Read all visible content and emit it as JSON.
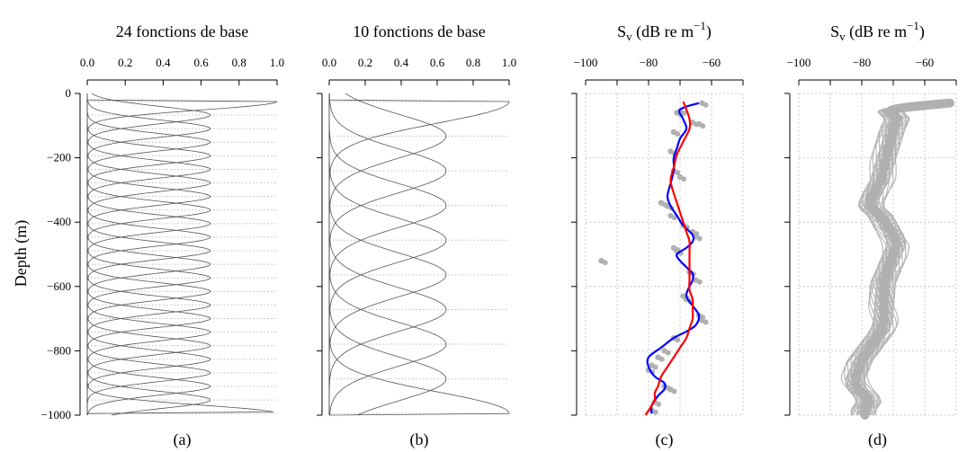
{
  "figure": {
    "ylabel": "Depth (m)",
    "yticks": [
      0,
      -200,
      -400,
      -600,
      -800,
      -1000
    ]
  },
  "colors": {
    "basis_line": "#555555",
    "grid": "#bbbbbb",
    "obs_points": "#b0b0b0",
    "fit_24": "#0000ff",
    "fit_10": "#ff0000",
    "ensemble": "#b0b0b0"
  },
  "chart_data": [
    {
      "id": "a",
      "type": "line",
      "panel_label": "(a)",
      "title": "24 fonctions de base",
      "n_basis": 24,
      "xlim": [
        0,
        1
      ],
      "xticks": [
        "0.0",
        "0.2",
        "0.4",
        "0.6",
        "0.8",
        "1.0"
      ],
      "ylim": [
        -1000,
        0
      ],
      "grid": "dotted horizontal lines at basis peaks"
    },
    {
      "id": "b",
      "type": "line",
      "panel_label": "(b)",
      "title": "10 fonctions de base",
      "n_basis": 10,
      "xlim": [
        0,
        1
      ],
      "xticks": [
        "0.0",
        "0.2",
        "0.4",
        "0.6",
        "0.8",
        "1.0"
      ],
      "ylim": [
        -1000,
        0
      ],
      "grid": "dotted horizontal lines at basis peaks"
    },
    {
      "id": "c",
      "type": "scatter",
      "panel_label": "(c)",
      "title": "S<sub>v</sub> (dB re m<sup>−1</sup>)",
      "title_parts": {
        "main": "S",
        "sub": "v",
        "rest": " (dB re m",
        "sup": "−1",
        "close": ")"
      },
      "xlim": [
        -100,
        -50
      ],
      "xticks": [
        "−100",
        "−80",
        "−60"
      ],
      "ylim": [
        -1000,
        0
      ],
      "grid": "dotted",
      "observations": [
        {
          "x": -63,
          "y": -30
        },
        {
          "x": -70,
          "y": -55
        },
        {
          "x": -71,
          "y": -60
        },
        {
          "x": -66,
          "y": -90
        },
        {
          "x": -64,
          "y": -95
        },
        {
          "x": -72,
          "y": -120
        },
        {
          "x": -73,
          "y": -180
        },
        {
          "x": -72,
          "y": -240
        },
        {
          "x": -70,
          "y": -260
        },
        {
          "x": -76,
          "y": -340
        },
        {
          "x": -74,
          "y": -350
        },
        {
          "x": -73,
          "y": -380
        },
        {
          "x": -69,
          "y": -410
        },
        {
          "x": -66,
          "y": -430
        },
        {
          "x": -65,
          "y": -445
        },
        {
          "x": -72,
          "y": -480
        },
        {
          "x": -71,
          "y": -490
        },
        {
          "x": -95,
          "y": -520
        },
        {
          "x": -67,
          "y": -555
        },
        {
          "x": -65,
          "y": -580
        },
        {
          "x": -69,
          "y": -630
        },
        {
          "x": -68,
          "y": -640
        },
        {
          "x": -64,
          "y": -690
        },
        {
          "x": -63,
          "y": -705
        },
        {
          "x": -72,
          "y": -760
        },
        {
          "x": -75,
          "y": -800
        },
        {
          "x": -77,
          "y": -820
        },
        {
          "x": -79,
          "y": -845
        },
        {
          "x": -80,
          "y": -860
        },
        {
          "x": -75,
          "y": -910
        },
        {
          "x": -73,
          "y": -920
        },
        {
          "x": -78,
          "y": -960
        },
        {
          "x": -79,
          "y": -985
        }
      ],
      "series": [
        {
          "key": "fit_24",
          "x": [
            -64,
            -70,
            -69,
            -68,
            -70,
            -71,
            -72,
            -72,
            -72,
            -73,
            -74,
            -73,
            -71,
            -69,
            -66,
            -66,
            -68,
            -71,
            -70,
            -68,
            -66,
            -66,
            -67,
            -68,
            -66,
            -64,
            -65,
            -68,
            -72,
            -76,
            -80,
            -80,
            -78,
            -75,
            -75,
            -77,
            -79,
            -79
          ],
          "y": [
            -30,
            -50,
            -80,
            -110,
            -140,
            -170,
            -200,
            -220,
            -240,
            -280,
            -320,
            -350,
            -380,
            -410,
            -440,
            -460,
            -480,
            -500,
            -520,
            -540,
            -560,
            -580,
            -600,
            -630,
            -660,
            -690,
            -720,
            -740,
            -760,
            -790,
            -820,
            -850,
            -880,
            -900,
            -920,
            -940,
            -970,
            -995
          ]
        },
        {
          "key": "fit_10",
          "x": [
            -69,
            -68,
            -67,
            -67,
            -69,
            -71,
            -72,
            -73,
            -72,
            -71,
            -70,
            -69,
            -68,
            -67,
            -67,
            -67,
            -67,
            -67,
            -67,
            -66,
            -66,
            -66,
            -67,
            -68,
            -70,
            -72,
            -74,
            -76,
            -77,
            -78,
            -78,
            -79,
            -81
          ],
          "y": [
            -25,
            -50,
            -80,
            -110,
            -150,
            -190,
            -230,
            -270,
            -310,
            -340,
            -370,
            -400,
            -430,
            -460,
            -490,
            -520,
            -550,
            -580,
            -610,
            -640,
            -670,
            -700,
            -730,
            -760,
            -790,
            -820,
            -850,
            -880,
            -910,
            -930,
            -950,
            -970,
            -1000
          ]
        }
      ]
    },
    {
      "id": "d",
      "type": "line",
      "panel_label": "(d)",
      "title": "S<sub>v</sub> (dB re m<sup>−1</sup>)",
      "title_parts": {
        "main": "S",
        "sub": "v",
        "rest": " (dB re m",
        "sup": "−1",
        "close": ")"
      },
      "xlim": [
        -100,
        -50
      ],
      "xticks": [
        "−100",
        "−80",
        "−60"
      ],
      "ylim": [
        -1000,
        0
      ],
      "grid": "dotted",
      "ensemble_center": {
        "x": [
          -52,
          -70,
          -69,
          -70,
          -71,
          -72,
          -73,
          -74,
          -76,
          -77,
          -74,
          -72,
          -70,
          -69,
          -70,
          -71,
          -72,
          -73,
          -73,
          -73,
          -73,
          -73,
          -74,
          -76,
          -78,
          -80,
          -81,
          -82,
          -81,
          -79,
          -78,
          -79,
          -79
        ],
        "y": [
          -30,
          -50,
          -80,
          -110,
          -150,
          -190,
          -230,
          -270,
          -310,
          -350,
          -380,
          -410,
          -440,
          -470,
          -500,
          -530,
          -560,
          -590,
          -620,
          -650,
          -680,
          -710,
          -740,
          -770,
          -800,
          -830,
          -860,
          -890,
          -920,
          -940,
          -960,
          -980,
          -1000
        ]
      },
      "ensemble_count": 30
    }
  ]
}
